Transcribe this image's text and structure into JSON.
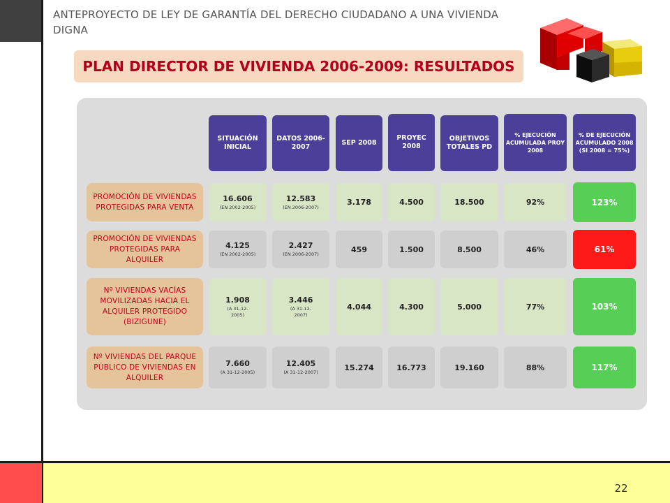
{
  "header": {
    "doc_title": "ANTEPROYECTO  DE LEY DE GARANTÍA DEL DERECHO CIUDADANO A UNA VIVIENDA DIGNA",
    "section_title": "PLAN DIRECTOR DE VIVIENDA 2006-2009:  RESULTADOS"
  },
  "table": {
    "columns": [
      "SITUACIÓN INICIAL",
      "DATOS 2006-2007",
      "SEP 2008",
      "PROYEC 2008",
      "OBJETIVOS TOTALES PD",
      "% EJECUCIÓN ACUMULADA PROY 2008",
      "% DE EJECUCIÓN ACUMULADO 2008 (SI 2008 = 75%)"
    ],
    "rows": [
      {
        "label": "PROMOCIÓN DE VIVIENDAS PROTEGIDAS PARA VENTA",
        "situacion": "16.606",
        "situacion_note": "(EN 2002-2005)",
        "datos": "12.583",
        "datos_note": "(EN 2006-2007)",
        "sep": "3.178",
        "proyec": "4.500",
        "objetivos": "18.500",
        "ejec_proy": "92%",
        "ejec_acum": "123%"
      },
      {
        "label": "PROMOCIÓN DE VIVIENDAS PROTEGIDAS PARA ALQUILER",
        "situacion": "4.125",
        "situacion_note": "(EN 2002-2005)",
        "datos": "2.427",
        "datos_note": "(EN 2006-2007)",
        "sep": "459",
        "proyec": "1.500",
        "objetivos": "8.500",
        "ejec_proy": "46%",
        "ejec_acum": "61%"
      },
      {
        "label": "Nº VIVIENDAS VACÍAS MOVILIZADAS HACIA EL ALQUILER PROTEGIDO (BIZIGUNE)",
        "situacion": "1.908",
        "situacion_note": "(A 31-12-2005)",
        "datos": "3.446",
        "datos_note": "(A 31-12-2007)",
        "sep": "4.044",
        "proyec": "4.300",
        "objetivos": "5.000",
        "ejec_proy": "77%",
        "ejec_acum": "103%"
      },
      {
        "label": "Nº VIVIENDAS DEL PARQUE PÚBLICO DE VIVIENDAS EN ALQUILER",
        "situacion": "7.660",
        "situacion_note": "(A 31-12-2005)",
        "datos": "12.405",
        "datos_note": "(A 31-12-2007)",
        "sep": "15.274",
        "proyec": "16.773",
        "objetivos": "19.160",
        "ejec_proy": "88%",
        "ejec_acum": "117%"
      }
    ]
  },
  "footer": {
    "page_number": "22"
  },
  "colors": {
    "accent_red": "#b3001b",
    "header_purple": "#4b3f9a",
    "cell_green_light": "#d8e6c6",
    "cell_green_bright": "#57cf57",
    "cell_red": "#ff1a1a",
    "footer_yellow": "#ffff99"
  }
}
